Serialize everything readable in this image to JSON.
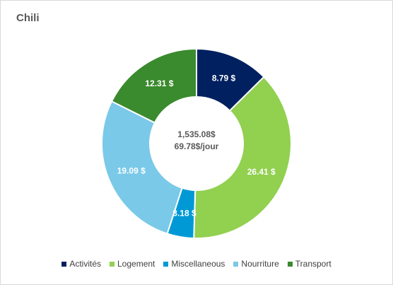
{
  "chart_data": {
    "type": "pie",
    "title": "Chili",
    "donut": true,
    "center_labels": [
      "1,535.08$",
      "69.78$/jour"
    ],
    "legend_position": "bottom",
    "slices": [
      {
        "name": "Activités",
        "value": 8.79,
        "label": "8.79  $",
        "color": "#002060"
      },
      {
        "name": "Logement",
        "value": 26.41,
        "label": "26.41  $",
        "color": "#92D050"
      },
      {
        "name": "Miscellaneous",
        "value": 3.18,
        "label": "3.18  $",
        "color": "#0099D6"
      },
      {
        "name": "Nourriture",
        "value": 19.09,
        "label": "19.09  $",
        "color": "#7AC9E8"
      },
      {
        "name": "Transport",
        "value": 12.31,
        "label": "12.31  $",
        "color": "#3A8A2E"
      }
    ]
  }
}
